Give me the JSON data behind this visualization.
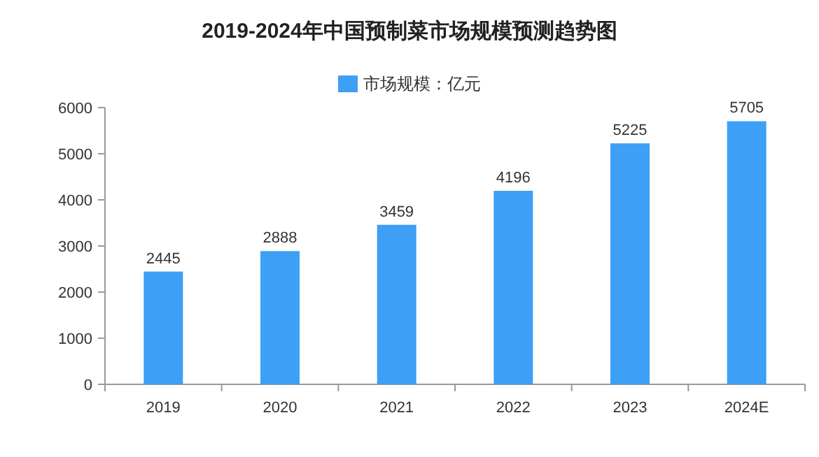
{
  "chart_data": {
    "type": "bar",
    "title": "2019-2024年中国预制菜市场规模预测趋势图",
    "categories": [
      "2019",
      "2020",
      "2021",
      "2022",
      "2023",
      "2024E"
    ],
    "series": [
      {
        "name": "市场规模：亿元",
        "color": "#3d9ff5",
        "values": [
          2445,
          2888,
          3459,
          4196,
          5225,
          5705
        ]
      }
    ],
    "ylim": [
      0,
      6000
    ],
    "yticks": [
      0,
      1000,
      2000,
      3000,
      4000,
      5000,
      6000
    ],
    "data_labels": true,
    "legend": "top",
    "grid": false
  }
}
